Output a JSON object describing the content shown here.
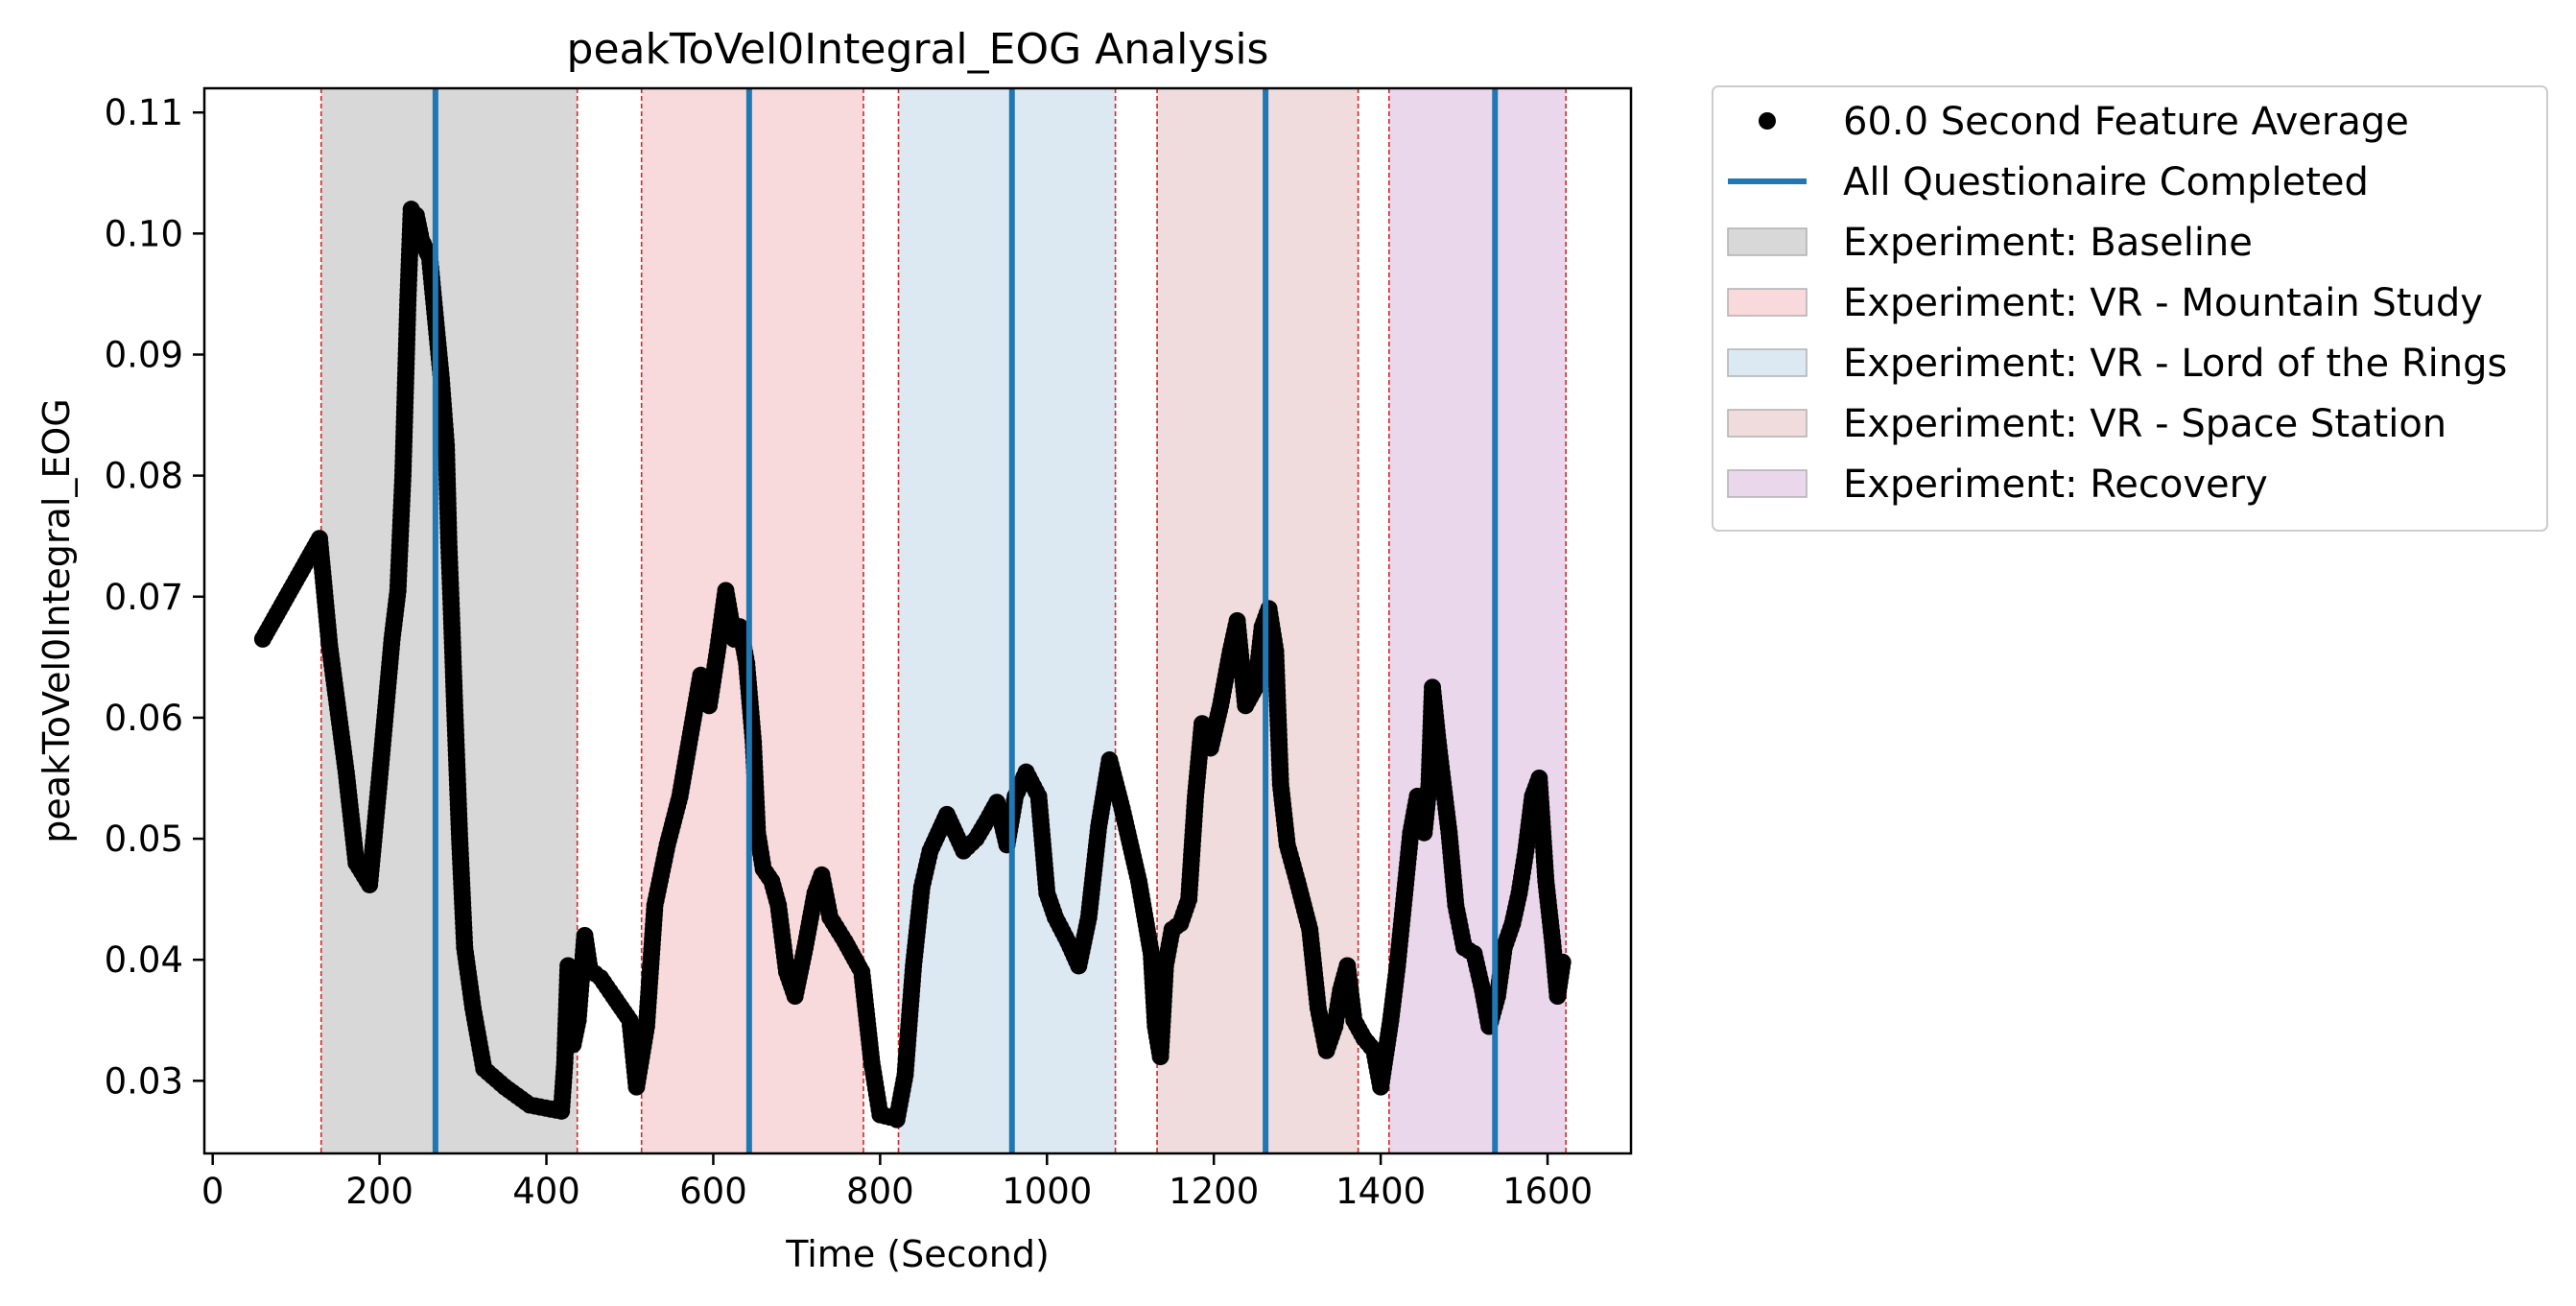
{
  "chart_data": {
    "type": "scatter",
    "title": "peakToVel0Integral_EOG Analysis",
    "xlabel": "Time (Second)",
    "ylabel": "peakToVel0Integral_EOG",
    "xlim": [
      -10,
      1700
    ],
    "ylim": [
      0.024,
      0.112
    ],
    "xticks": [
      0,
      200,
      400,
      600,
      800,
      1000,
      1200,
      1400,
      1600
    ],
    "yticks": [
      0.03,
      0.04,
      0.05,
      0.06,
      0.07,
      0.08,
      0.09,
      0.1,
      0.11
    ],
    "ytick_labels": [
      "0.03",
      "0.04",
      "0.05",
      "0.06",
      "0.07",
      "0.08",
      "0.09",
      "0.10",
      "0.11"
    ],
    "legend_position": "outside-right-top",
    "grid": false,
    "regions": [
      {
        "name": "Experiment: Baseline",
        "start": 130,
        "end": 437,
        "color": "#d8d8d8"
      },
      {
        "name": "Experiment: VR - Mountain Study",
        "start": 514,
        "end": 780,
        "color": "#f8d9dc"
      },
      {
        "name": "Experiment: VR - Lord of the Rings",
        "start": 822,
        "end": 1082,
        "color": "#dce9f3"
      },
      {
        "name": "Experiment: VR - Space Station",
        "start": 1132,
        "end": 1373,
        "color": "#f0dcdc"
      },
      {
        "name": "Experiment: Recovery",
        "start": 1410,
        "end": 1622,
        "color": "#ebd7ec"
      }
    ],
    "questionnaire_lines": {
      "name": "All Questionaire Completed",
      "x": [
        267,
        643,
        958,
        1262,
        1537
      ],
      "color": "#1f77b4"
    },
    "series": [
      {
        "name": "60.0 Second Feature Average",
        "marker": "circle",
        "color": "#000000",
        "points": [
          [
            60,
            0.0665
          ],
          [
            128,
            0.0748
          ],
          [
            140,
            0.066
          ],
          [
            160,
            0.0555
          ],
          [
            172,
            0.048
          ],
          [
            188,
            0.0462
          ],
          [
            200,
            0.055
          ],
          [
            215,
            0.0665
          ],
          [
            222,
            0.0705
          ],
          [
            228,
            0.08
          ],
          [
            234,
            0.0945
          ],
          [
            238,
            0.102
          ],
          [
            244,
            0.1015
          ],
          [
            250,
            0.0995
          ],
          [
            260,
            0.098
          ],
          [
            267,
            0.093
          ],
          [
            274,
            0.088
          ],
          [
            280,
            0.0825
          ],
          [
            283,
            0.0745
          ],
          [
            286,
            0.069
          ],
          [
            290,
            0.061
          ],
          [
            296,
            0.05
          ],
          [
            302,
            0.041
          ],
          [
            312,
            0.036
          ],
          [
            325,
            0.031
          ],
          [
            350,
            0.0295
          ],
          [
            380,
            0.028
          ],
          [
            418,
            0.0275
          ],
          [
            422,
            0.0315
          ],
          [
            426,
            0.0395
          ],
          [
            432,
            0.033
          ],
          [
            438,
            0.035
          ],
          [
            446,
            0.042
          ],
          [
            452,
            0.0392
          ],
          [
            465,
            0.0385
          ],
          [
            480,
            0.037
          ],
          [
            500,
            0.035
          ],
          [
            508,
            0.0295
          ],
          [
            520,
            0.0345
          ],
          [
            530,
            0.0445
          ],
          [
            545,
            0.0495
          ],
          [
            560,
            0.0535
          ],
          [
            575,
            0.0595
          ],
          [
            585,
            0.0635
          ],
          [
            595,
            0.061
          ],
          [
            605,
            0.0655
          ],
          [
            615,
            0.0705
          ],
          [
            625,
            0.0665
          ],
          [
            632,
            0.0675
          ],
          [
            640,
            0.0645
          ],
          [
            648,
            0.058
          ],
          [
            653,
            0.0505
          ],
          [
            660,
            0.0475
          ],
          [
            670,
            0.0465
          ],
          [
            678,
            0.0445
          ],
          [
            688,
            0.039
          ],
          [
            698,
            0.037
          ],
          [
            710,
            0.041
          ],
          [
            722,
            0.0455
          ],
          [
            730,
            0.047
          ],
          [
            740,
            0.0435
          ],
          [
            758,
            0.0415
          ],
          [
            778,
            0.039
          ],
          [
            790,
            0.0315
          ],
          [
            800,
            0.0272
          ],
          [
            812,
            0.027
          ],
          [
            820,
            0.0268
          ],
          [
            830,
            0.0305
          ],
          [
            840,
            0.0395
          ],
          [
            850,
            0.046
          ],
          [
            860,
            0.049
          ],
          [
            870,
            0.0505
          ],
          [
            880,
            0.052
          ],
          [
            890,
            0.0505
          ],
          [
            900,
            0.049
          ],
          [
            915,
            0.05
          ],
          [
            928,
            0.0515
          ],
          [
            940,
            0.053
          ],
          [
            952,
            0.0495
          ],
          [
            962,
            0.0535
          ],
          [
            975,
            0.0555
          ],
          [
            990,
            0.0535
          ],
          [
            1000,
            0.0455
          ],
          [
            1010,
            0.0435
          ],
          [
            1025,
            0.0415
          ],
          [
            1038,
            0.0395
          ],
          [
            1050,
            0.0435
          ],
          [
            1062,
            0.051
          ],
          [
            1075,
            0.0565
          ],
          [
            1090,
            0.0525
          ],
          [
            1110,
            0.0465
          ],
          [
            1125,
            0.0405
          ],
          [
            1130,
            0.0345
          ],
          [
            1136,
            0.032
          ],
          [
            1142,
            0.0395
          ],
          [
            1150,
            0.0425
          ],
          [
            1160,
            0.043
          ],
          [
            1170,
            0.045
          ],
          [
            1178,
            0.0535
          ],
          [
            1186,
            0.0595
          ],
          [
            1196,
            0.0575
          ],
          [
            1208,
            0.061
          ],
          [
            1220,
            0.0655
          ],
          [
            1228,
            0.068
          ],
          [
            1238,
            0.061
          ],
          [
            1250,
            0.0625
          ],
          [
            1258,
            0.0675
          ],
          [
            1266,
            0.069
          ],
          [
            1274,
            0.0655
          ],
          [
            1280,
            0.0545
          ],
          [
            1288,
            0.0495
          ],
          [
            1300,
            0.0465
          ],
          [
            1315,
            0.0425
          ],
          [
            1325,
            0.036
          ],
          [
            1335,
            0.0325
          ],
          [
            1345,
            0.0345
          ],
          [
            1352,
            0.0375
          ],
          [
            1360,
            0.0395
          ],
          [
            1368,
            0.035
          ],
          [
            1380,
            0.0335
          ],
          [
            1392,
            0.0325
          ],
          [
            1400,
            0.0295
          ],
          [
            1412,
            0.035
          ],
          [
            1420,
            0.0395
          ],
          [
            1428,
            0.045
          ],
          [
            1436,
            0.0505
          ],
          [
            1444,
            0.0535
          ],
          [
            1452,
            0.0505
          ],
          [
            1458,
            0.0545
          ],
          [
            1462,
            0.0625
          ],
          [
            1468,
            0.0585
          ],
          [
            1474,
            0.055
          ],
          [
            1482,
            0.0505
          ],
          [
            1490,
            0.0445
          ],
          [
            1500,
            0.041
          ],
          [
            1512,
            0.0405
          ],
          [
            1522,
            0.0375
          ],
          [
            1530,
            0.0345
          ],
          [
            1540,
            0.037
          ],
          [
            1548,
            0.041
          ],
          [
            1558,
            0.043
          ],
          [
            1566,
            0.0455
          ],
          [
            1574,
            0.049
          ],
          [
            1582,
            0.0535
          ],
          [
            1590,
            0.055
          ],
          [
            1598,
            0.0465
          ],
          [
            1606,
            0.0415
          ],
          [
            1612,
            0.037
          ],
          [
            1618,
            0.0398
          ]
        ]
      }
    ]
  }
}
